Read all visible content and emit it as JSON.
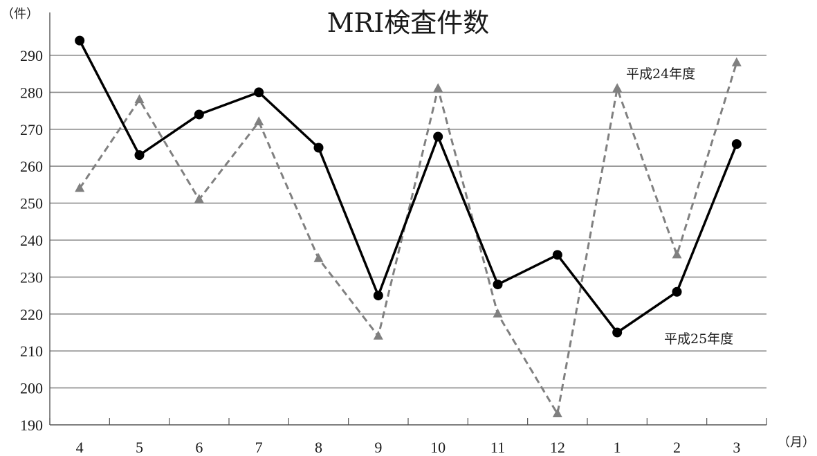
{
  "chart_data": {
    "type": "line",
    "title": "MRI検査件数",
    "y_unit_label": "（件）",
    "x_unit_label": "（月）",
    "categories": [
      "4",
      "5",
      "6",
      "7",
      "8",
      "9",
      "10",
      "11",
      "12",
      "1",
      "2",
      "3"
    ],
    "ylim": [
      190,
      295
    ],
    "yticks": [
      190,
      200,
      210,
      220,
      230,
      240,
      250,
      260,
      270,
      280,
      290
    ],
    "grid": true,
    "series": [
      {
        "name": "平成25年度",
        "style": "solid",
        "marker": "circle",
        "color": "#000000",
        "values": [
          294,
          263,
          274,
          280,
          265,
          225,
          268,
          228,
          236,
          215,
          226,
          266
        ]
      },
      {
        "name": "平成24年度",
        "style": "dashed",
        "marker": "triangle",
        "color": "#808080",
        "values": [
          254,
          278,
          251,
          272,
          235,
          214,
          281,
          220,
          193,
          281,
          236,
          288
        ]
      }
    ]
  }
}
